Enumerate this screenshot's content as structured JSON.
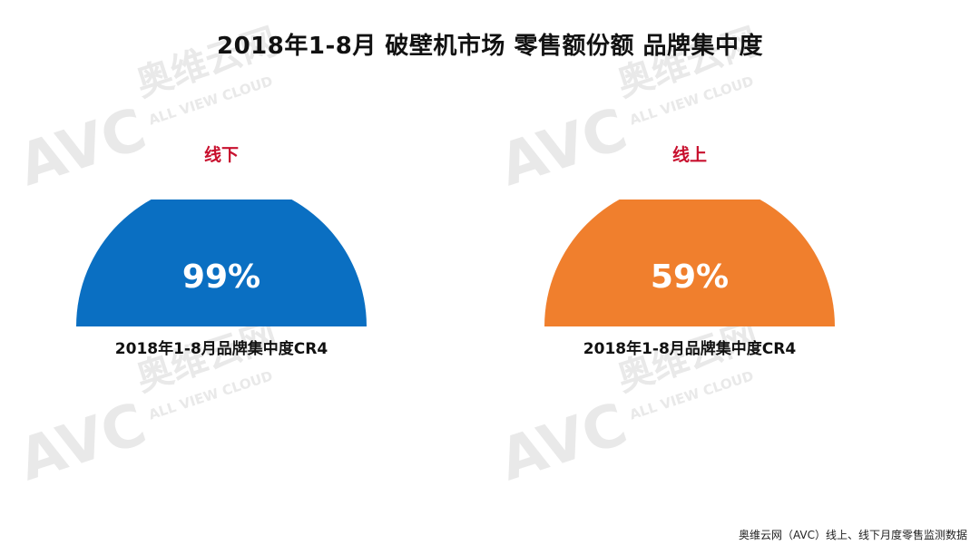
{
  "title": "2018年1-8月 破壁机市场 零售额份额 品牌集中度",
  "watermark": {
    "logo_text": "AVC",
    "brand_cn": "奥维云网",
    "tagline": "ALL VIEW CLOUD"
  },
  "chart_data": [
    {
      "type": "pie",
      "style": "half-donut-gauge",
      "title": "线下",
      "caption": "2018年1-8月品牌集中度CR4",
      "value": 99,
      "value_label": "99%",
      "unit": "%",
      "color": "#0a6fc2"
    },
    {
      "type": "pie",
      "style": "half-donut-gauge",
      "title": "线上",
      "caption": "2018年1-8月品牌集中度CR4",
      "value": 59,
      "value_label": "59%",
      "unit": "%",
      "color": "#f07f2d"
    }
  ],
  "source": "奥维云网（AVC）线上、线下月度零售监测数据"
}
